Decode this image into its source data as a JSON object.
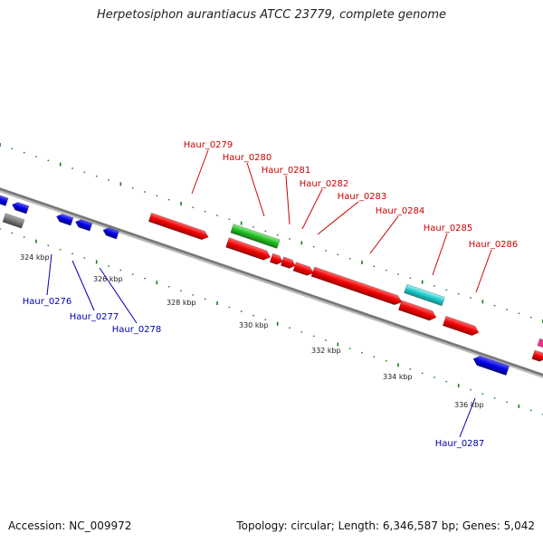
{
  "title": "Herpetosiphon aurantiacus ATCC 23779, complete genome",
  "footer": {
    "accession": "Accession: NC_009972",
    "summary": "Topology: circular; Length: 6,346,587 bp; Genes: 5,042"
  },
  "colors": {
    "backbone": "#777777",
    "tick": "#1d7a1d",
    "forward_gene": "#ff0000",
    "reverse_gene": "#0000ee",
    "label_forward": "#cc0000",
    "label_reverse": "#0000aa",
    "gene_green": "#33cc33",
    "gene_cyan": "#22cccc",
    "gene_gray": "#777777"
  },
  "scale_labels": [
    "324 kbp",
    "326 kbp",
    "328 kbp",
    "330 kbp",
    "332 kbp",
    "334 kbp",
    "336 kbp"
  ],
  "genes_top": [
    "Haur_0279",
    "Haur_0280",
    "Haur_0281",
    "Haur_0282",
    "Haur_0283",
    "Haur_0284",
    "Haur_0285",
    "Haur_0286"
  ],
  "genes_bottom": [
    "Haur_0276",
    "Haur_0277",
    "Haur_0278",
    "Haur_0287"
  ]
}
